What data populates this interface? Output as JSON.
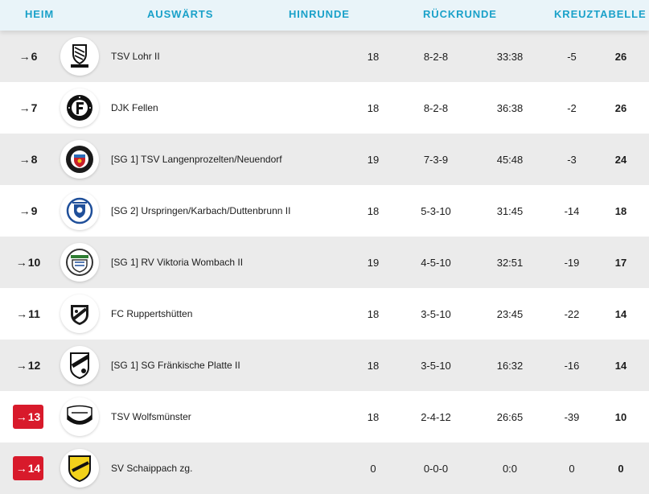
{
  "tabs": [
    {
      "label": "HEIM"
    },
    {
      "label": "AUSWÄRTS"
    },
    {
      "label": "HINRUNDE"
    },
    {
      "label": "RÜCKRUNDE"
    },
    {
      "label": "KREUZTABELLE"
    }
  ],
  "arrow_glyph": "→",
  "colors": {
    "accent": "#1aa1c9",
    "relegation": "#d81a2b",
    "row_alt": "#ebebeb"
  },
  "rows": [
    {
      "position": "6",
      "team": "TSV Lohr II",
      "games": "18",
      "record": "8-2-8",
      "goals": "33:38",
      "diff": "-5",
      "points": "26",
      "relegation": false,
      "logo_icon": "tsv-lohr-crest-icon"
    },
    {
      "position": "7",
      "team": "DJK Fellen",
      "games": "18",
      "record": "8-2-8",
      "goals": "36:38",
      "diff": "-2",
      "points": "26",
      "relegation": false,
      "logo_icon": "djk-fellen-crest-icon"
    },
    {
      "position": "8",
      "team": "[SG 1] TSV Langenprozelten/Neuendorf",
      "games": "19",
      "record": "7-3-9",
      "goals": "45:48",
      "diff": "-3",
      "points": "24",
      "relegation": false,
      "logo_icon": "tsv-langenprozelten-crest-icon"
    },
    {
      "position": "9",
      "team": "[SG 2] Urspringen/Karbach/Duttenbrunn II",
      "games": "18",
      "record": "5-3-10",
      "goals": "31:45",
      "diff": "-14",
      "points": "18",
      "relegation": false,
      "logo_icon": "urspringen-crest-icon"
    },
    {
      "position": "10",
      "team": "[SG 1] RV Viktoria Wombach II",
      "games": "19",
      "record": "4-5-10",
      "goals": "32:51",
      "diff": "-19",
      "points": "17",
      "relegation": false,
      "logo_icon": "viktoria-wombach-crest-icon"
    },
    {
      "position": "11",
      "team": "FC Ruppertshütten",
      "games": "18",
      "record": "3-5-10",
      "goals": "23:45",
      "diff": "-22",
      "points": "14",
      "relegation": false,
      "logo_icon": "fc-ruppertshuetten-crest-icon"
    },
    {
      "position": "12",
      "team": "[SG 1] SG Fränkische Platte II",
      "games": "18",
      "record": "3-5-10",
      "goals": "16:32",
      "diff": "-16",
      "points": "14",
      "relegation": false,
      "logo_icon": "sg-fraenkische-platte-crest-icon"
    },
    {
      "position": "13",
      "team": "TSV Wolfsmünster",
      "games": "18",
      "record": "2-4-12",
      "goals": "26:65",
      "diff": "-39",
      "points": "10",
      "relegation": true,
      "logo_icon": "tsv-wolfsmuenster-crest-icon"
    },
    {
      "position": "14",
      "team": "SV Schaippach zg.",
      "games": "0",
      "record": "0-0-0",
      "goals": "0:0",
      "diff": "0",
      "points": "0",
      "relegation": true,
      "logo_icon": "sv-schaippach-crest-icon"
    }
  ]
}
